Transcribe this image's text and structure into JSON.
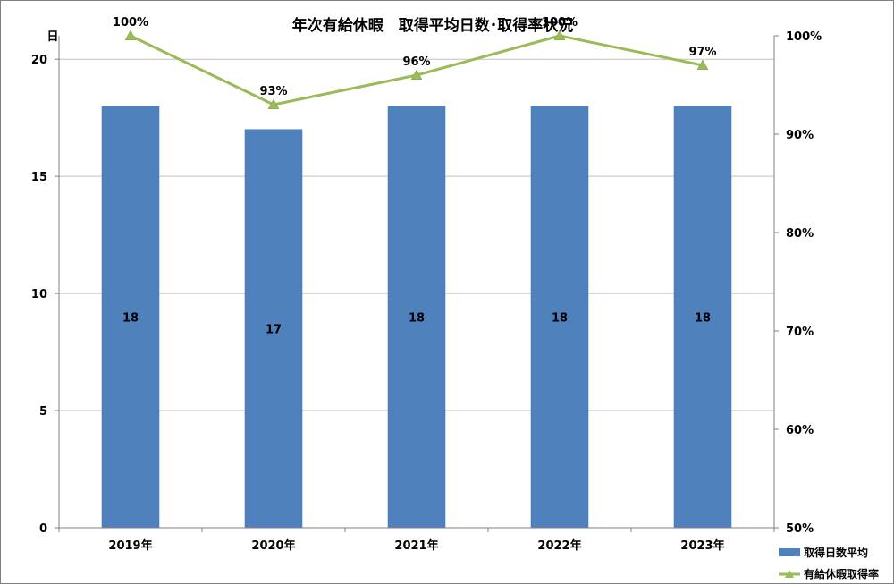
{
  "chart_data": {
    "type": "bar",
    "title": "年次有給休暇　取得平均日数･取得率状況",
    "categories": [
      "2019年",
      "2020年",
      "2021年",
      "2022年",
      "2023年"
    ],
    "y_unit_label": "日",
    "ylim": [
      0,
      21
    ],
    "yticks": [
      "0",
      "5",
      "10",
      "15",
      "20"
    ],
    "y2lim": [
      50,
      100
    ],
    "y2ticks": [
      "50%",
      "60%",
      "70%",
      "80%",
      "90%",
      "100%"
    ],
    "grid": true,
    "legend_position": "bottom-right",
    "series": [
      {
        "name": "取得日数平均",
        "type": "bar",
        "axis": "left",
        "color": "#4f81bd",
        "values": [
          18,
          17,
          18,
          18,
          18
        ],
        "labels": [
          "18",
          "17",
          "18",
          "18",
          "18"
        ]
      },
      {
        "name": "有給休暇取得率",
        "type": "line",
        "axis": "right",
        "color": "#9bbb59",
        "marker": "triangle",
        "values": [
          100,
          93,
          96,
          100,
          97
        ],
        "labels": [
          "100%",
          "93%",
          "96%",
          "100%",
          "97%"
        ]
      }
    ]
  }
}
